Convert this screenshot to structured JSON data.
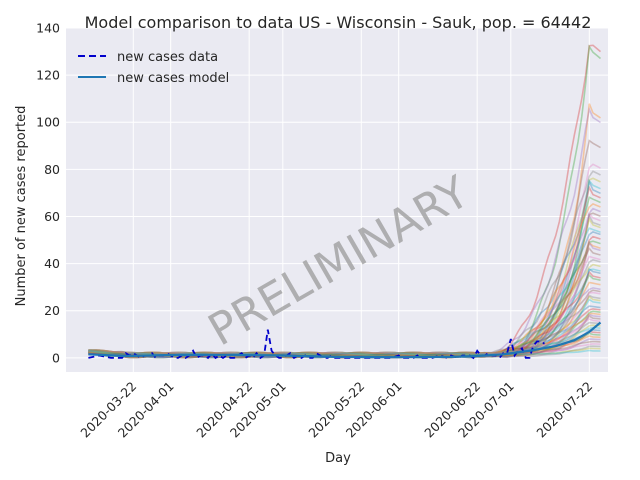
{
  "chart_data": {
    "type": "line",
    "title": "Model comparison to data US - Wisconsin - Sauk, pop. = 64442",
    "xlabel": "Day",
    "ylabel": "Number of new cases reported",
    "x_tick_labels": [
      "2020-03-22",
      "2020-04-01",
      "2020-04-22",
      "2020-05-01",
      "2020-05-22",
      "2020-06-01",
      "2020-06-22",
      "2020-07-01",
      "2020-07-22"
    ],
    "x_range": [
      "2020-03-04",
      "2020-07-27"
    ],
    "ylim": [
      -6,
      140
    ],
    "y_ticks": [
      0,
      20,
      40,
      60,
      80,
      100,
      120,
      140
    ],
    "grid": true,
    "legend_position": "top-left",
    "watermark": "PRELIMINARY",
    "series": [
      {
        "name": "new cases data",
        "style": "dashed",
        "color": "#0000cc",
        "x": [
          "2020-03-10",
          "2020-03-13",
          "2020-03-16",
          "2020-03-19",
          "2020-03-20",
          "2020-03-21",
          "2020-03-22",
          "2020-03-23",
          "2020-03-24",
          "2020-03-25",
          "2020-03-26",
          "2020-03-27",
          "2020-03-28",
          "2020-03-29",
          "2020-03-30",
          "2020-03-31",
          "2020-04-01",
          "2020-04-02",
          "2020-04-03",
          "2020-04-04",
          "2020-04-05",
          "2020-04-06",
          "2020-04-07",
          "2020-04-08",
          "2020-04-09",
          "2020-04-10",
          "2020-04-11",
          "2020-04-12",
          "2020-04-13",
          "2020-04-14",
          "2020-04-15",
          "2020-04-16",
          "2020-04-17",
          "2020-04-18",
          "2020-04-19",
          "2020-04-20",
          "2020-04-21",
          "2020-04-22",
          "2020-04-23",
          "2020-04-24",
          "2020-04-25",
          "2020-04-26",
          "2020-04-27",
          "2020-04-28",
          "2020-04-29",
          "2020-04-30",
          "2020-05-01",
          "2020-05-02",
          "2020-05-03",
          "2020-05-04",
          "2020-05-05",
          "2020-05-06",
          "2020-05-07",
          "2020-05-08",
          "2020-05-09",
          "2020-05-10",
          "2020-05-11",
          "2020-05-12",
          "2020-05-13",
          "2020-05-14",
          "2020-05-15",
          "2020-05-16",
          "2020-05-18",
          "2020-05-20",
          "2020-05-22",
          "2020-05-25",
          "2020-05-28",
          "2020-05-30",
          "2020-06-01",
          "2020-06-02",
          "2020-06-03",
          "2020-06-05",
          "2020-06-06",
          "2020-06-07",
          "2020-06-08",
          "2020-06-10",
          "2020-06-12",
          "2020-06-14",
          "2020-06-15",
          "2020-06-17",
          "2020-06-18",
          "2020-06-20",
          "2020-06-21",
          "2020-06-22",
          "2020-06-23",
          "2020-06-24",
          "2020-06-25",
          "2020-06-26",
          "2020-06-27",
          "2020-06-28",
          "2020-06-29",
          "2020-06-30",
          "2020-07-01",
          "2020-07-02",
          "2020-07-03",
          "2020-07-04",
          "2020-07-05",
          "2020-07-06",
          "2020-07-07",
          "2020-07-08",
          "2020-07-09",
          "2020-07-10"
        ],
        "y": [
          0,
          1,
          0,
          0,
          2,
          1,
          2,
          1,
          0,
          1,
          1,
          2,
          0,
          1,
          1,
          2,
          1,
          0,
          0,
          1,
          0,
          1,
          3,
          0,
          1,
          1,
          0,
          2,
          0,
          1,
          0,
          1,
          0,
          0,
          1,
          2,
          0,
          1,
          0,
          2,
          0,
          1,
          12,
          3,
          1,
          0,
          0,
          1,
          2,
          0,
          1,
          0,
          1,
          0,
          0,
          2,
          1,
          0,
          0,
          1,
          0,
          0,
          0,
          0,
          0,
          0,
          0,
          0,
          1,
          0,
          0,
          0,
          1,
          0,
          0,
          0,
          1,
          0,
          1,
          0,
          1,
          1,
          0,
          3,
          1,
          1,
          2,
          1,
          1,
          0,
          2,
          2,
          8,
          1,
          3,
          4,
          0,
          0,
          5,
          7,
          7,
          6
        ]
      },
      {
        "name": "new cases model",
        "style": "solid",
        "color": "#1f77b4",
        "x": [
          "2020-03-10",
          "2020-03-20",
          "2020-04-01",
          "2020-04-15",
          "2020-05-01",
          "2020-05-15",
          "2020-06-01",
          "2020-06-15",
          "2020-06-22",
          "2020-06-29",
          "2020-07-06",
          "2020-07-13",
          "2020-07-18",
          "2020-07-22",
          "2020-07-25"
        ],
        "y": [
          1.5,
          0.8,
          1.2,
          1.3,
          1.0,
          0.4,
          0.3,
          0.4,
          0.8,
          1.5,
          3.0,
          5.0,
          7.5,
          11.0,
          15.0
        ]
      }
    ],
    "ensemble_colors": [
      "#d62728",
      "#2ca02c",
      "#ff7f0e",
      "#9467bd",
      "#8c564b",
      "#e377c2",
      "#7f7f7f",
      "#bcbd22",
      "#17becf",
      "#1f77b4"
    ],
    "ensemble_peak_values": [
      134,
      131,
      105,
      103,
      92,
      83,
      80,
      77,
      74,
      72,
      70,
      68,
      66,
      64,
      62,
      60,
      58,
      57,
      55,
      54,
      52,
      50,
      48,
      47,
      45,
      43,
      42,
      40,
      38,
      37,
      35,
      34,
      32,
      30,
      29,
      28,
      26,
      25,
      24,
      22,
      21,
      20,
      19,
      18,
      17,
      16,
      15,
      14,
      13,
      12,
      11,
      10,
      9,
      8,
      7,
      6,
      5,
      4,
      3
    ]
  }
}
